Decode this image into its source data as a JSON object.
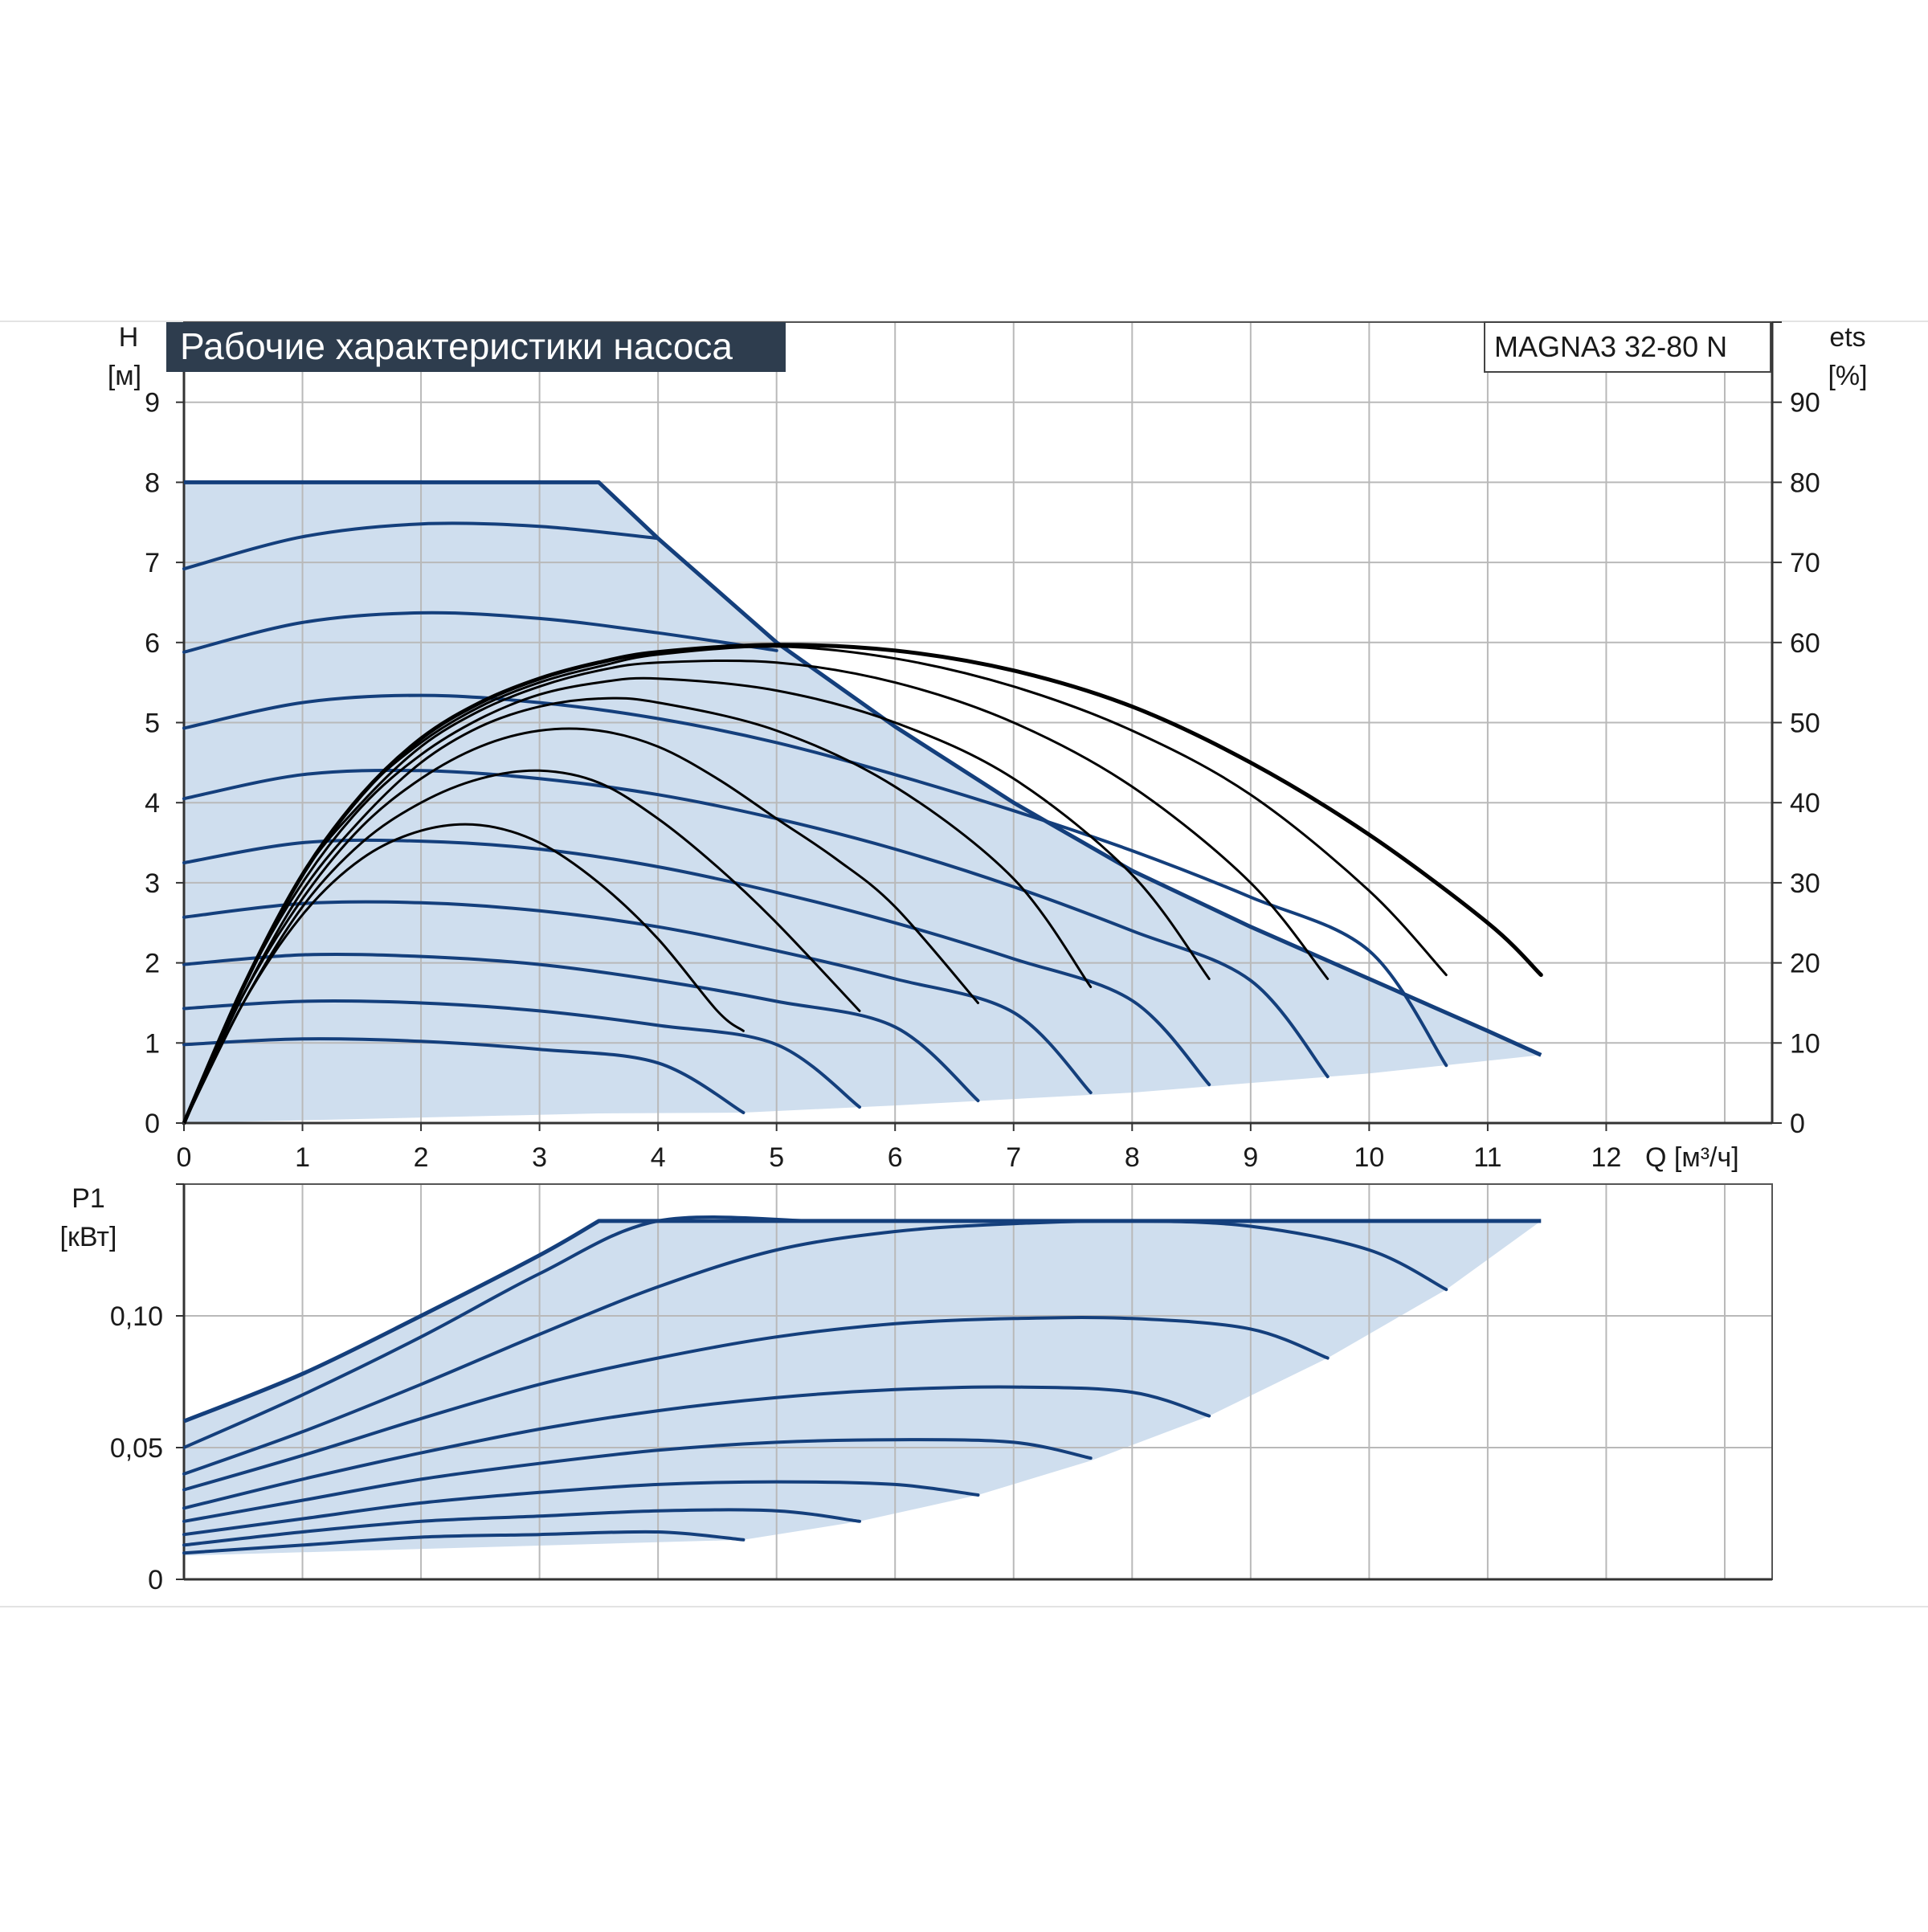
{
  "title": "Рабочие характеристики насоса",
  "model": "MAGNA3 32-80 N",
  "colors": {
    "curve": "#143f7c",
    "fill": "#cfdeee",
    "efficiency": "#000000",
    "grid": "#b9b9b9",
    "title_bg": "#2e3d4e"
  },
  "chart_data": [
    {
      "id": "head",
      "type": "line",
      "ylabel": [
        "H",
        "[м]"
      ],
      "y2label": [
        "ets",
        "[%]"
      ],
      "xlabel": "Q [м³/ч]",
      "xlim": [
        0,
        13.4
      ],
      "ylim": [
        0,
        10
      ],
      "y2lim": [
        0,
        100
      ],
      "x_ticks": [
        "0",
        "1",
        "2",
        "3",
        "4",
        "5",
        "6",
        "7",
        "8",
        "9",
        "10",
        "11",
        "12"
      ],
      "y_ticks": [
        "0",
        "1",
        "2",
        "3",
        "4",
        "5",
        "6",
        "7",
        "8",
        "9"
      ],
      "y2_ticks": [
        "0",
        "10",
        "20",
        "30",
        "40",
        "50",
        "60",
        "70",
        "80",
        "90"
      ],
      "grid": true,
      "operating_area": [
        [
          0,
          8
        ],
        [
          3.5,
          8
        ],
        [
          4.0,
          7.3
        ],
        [
          5.0,
          6.0
        ],
        [
          6.0,
          4.95
        ],
        [
          7.0,
          4.0
        ],
        [
          8.0,
          3.15
        ],
        [
          9.0,
          2.45
        ],
        [
          10.0,
          1.8
        ],
        [
          11.0,
          1.15
        ],
        [
          11.45,
          0.85
        ],
        [
          10.0,
          0.62
        ],
        [
          8.0,
          0.38
        ],
        [
          6.0,
          0.22
        ],
        [
          4.72,
          0.13
        ],
        [
          3.5,
          0.12
        ],
        [
          0,
          0
        ]
      ],
      "envelope_max": [
        [
          0,
          8
        ],
        [
          3.5,
          8
        ],
        [
          4.0,
          7.3
        ],
        [
          5.0,
          6.0
        ],
        [
          6.0,
          4.95
        ],
        [
          7.0,
          4.0
        ],
        [
          8.0,
          3.15
        ],
        [
          9.0,
          2.45
        ],
        [
          10.0,
          1.8
        ],
        [
          11.0,
          1.15
        ],
        [
          11.45,
          0.85
        ]
      ],
      "speed_curves": [
        [
          [
            0,
            6.92
          ],
          [
            1,
            7.32
          ],
          [
            2,
            7.48
          ],
          [
            3,
            7.45
          ],
          [
            4,
            7.3
          ]
        ],
        [
          [
            0,
            5.88
          ],
          [
            1,
            6.25
          ],
          [
            2,
            6.37
          ],
          [
            3,
            6.3
          ],
          [
            4,
            6.12
          ],
          [
            5,
            5.9
          ]
        ],
        [
          [
            0,
            4.93
          ],
          [
            1,
            5.25
          ],
          [
            2,
            5.34
          ],
          [
            3,
            5.25
          ],
          [
            4,
            5.05
          ],
          [
            5,
            4.75
          ],
          [
            6,
            4.35
          ],
          [
            7,
            3.9
          ],
          [
            8,
            3.4
          ],
          [
            9,
            2.82
          ],
          [
            10,
            2.15
          ],
          [
            10.65,
            0.72
          ]
        ],
        [
          [
            0,
            4.05
          ],
          [
            1,
            4.35
          ],
          [
            2,
            4.4
          ],
          [
            3,
            4.3
          ],
          [
            4,
            4.1
          ],
          [
            5,
            3.8
          ],
          [
            6,
            3.42
          ],
          [
            7,
            2.95
          ],
          [
            8,
            2.4
          ],
          [
            9,
            1.78
          ],
          [
            9.65,
            0.58
          ]
        ],
        [
          [
            0,
            3.25
          ],
          [
            1,
            3.5
          ],
          [
            2,
            3.52
          ],
          [
            3,
            3.42
          ],
          [
            4,
            3.2
          ],
          [
            5,
            2.88
          ],
          [
            6,
            2.5
          ],
          [
            7,
            2.05
          ],
          [
            8,
            1.53
          ],
          [
            8.65,
            0.48
          ]
        ],
        [
          [
            0,
            2.57
          ],
          [
            1,
            2.74
          ],
          [
            2,
            2.75
          ],
          [
            3,
            2.65
          ],
          [
            4,
            2.45
          ],
          [
            5,
            2.15
          ],
          [
            6,
            1.8
          ],
          [
            7,
            1.38
          ],
          [
            7.65,
            0.38
          ]
        ],
        [
          [
            0,
            1.98
          ],
          [
            1,
            2.1
          ],
          [
            2,
            2.08
          ],
          [
            3,
            1.98
          ],
          [
            4,
            1.78
          ],
          [
            5,
            1.52
          ],
          [
            6,
            1.2
          ],
          [
            6.7,
            0.28
          ]
        ],
        [
          [
            0,
            1.43
          ],
          [
            1,
            1.52
          ],
          [
            2,
            1.5
          ],
          [
            3,
            1.4
          ],
          [
            4,
            1.22
          ],
          [
            5,
            0.98
          ],
          [
            5.7,
            0.2
          ]
        ],
        [
          [
            0,
            0.98
          ],
          [
            1,
            1.05
          ],
          [
            2,
            1.02
          ],
          [
            3,
            0.92
          ],
          [
            4,
            0.75
          ],
          [
            4.72,
            0.13
          ]
        ]
      ],
      "efficiency_curves": [
        [
          [
            0,
            0
          ],
          [
            0.5,
            15
          ],
          [
            1,
            26
          ],
          [
            1.5,
            33
          ],
          [
            2,
            36.5
          ],
          [
            2.5,
            37.2
          ],
          [
            3,
            35
          ],
          [
            3.5,
            30
          ],
          [
            4,
            23
          ],
          [
            4.5,
            14
          ],
          [
            4.72,
            11.5
          ]
        ],
        [
          [
            0,
            0
          ],
          [
            0.5,
            15
          ],
          [
            1,
            27
          ],
          [
            1.5,
            35
          ],
          [
            2,
            40
          ],
          [
            2.5,
            43
          ],
          [
            3,
            44
          ],
          [
            3.5,
            42.5
          ],
          [
            4,
            38
          ],
          [
            4.5,
            32
          ],
          [
            5,
            25
          ],
          [
            5.7,
            14
          ]
        ],
        [
          [
            0,
            0
          ],
          [
            0.5,
            16
          ],
          [
            1,
            28
          ],
          [
            1.5,
            37
          ],
          [
            2,
            43
          ],
          [
            2.5,
            47
          ],
          [
            3,
            49
          ],
          [
            3.5,
            49
          ],
          [
            4,
            47
          ],
          [
            4.5,
            43
          ],
          [
            5,
            38
          ],
          [
            5.5,
            33
          ],
          [
            6,
            27
          ],
          [
            6.7,
            15
          ]
        ],
        [
          [
            0,
            0
          ],
          [
            0.5,
            16
          ],
          [
            1,
            29
          ],
          [
            1.5,
            38
          ],
          [
            2,
            45
          ],
          [
            2.5,
            49.5
          ],
          [
            3,
            52
          ],
          [
            3.5,
            53
          ],
          [
            4,
            52.5
          ],
          [
            5,
            49
          ],
          [
            6,
            42
          ],
          [
            7,
            30.5
          ],
          [
            7.65,
            17
          ]
        ],
        [
          [
            0,
            0
          ],
          [
            0.5,
            17
          ],
          [
            1,
            30
          ],
          [
            1.5,
            39.5
          ],
          [
            2,
            46
          ],
          [
            2.5,
            50.5
          ],
          [
            3,
            53.5
          ],
          [
            3.5,
            55
          ],
          [
            4,
            55.5
          ],
          [
            5,
            54
          ],
          [
            6,
            50
          ],
          [
            7,
            43
          ],
          [
            8,
            31
          ],
          [
            8.65,
            18
          ]
        ],
        [
          [
            0,
            0
          ],
          [
            0.5,
            17
          ],
          [
            1,
            31
          ],
          [
            1.5,
            40
          ],
          [
            2,
            47
          ],
          [
            2.5,
            51.5
          ],
          [
            3,
            54.5
          ],
          [
            3.5,
            56.5
          ],
          [
            4,
            57.5
          ],
          [
            5,
            57.5
          ],
          [
            6,
            55
          ],
          [
            7,
            50
          ],
          [
            8,
            42
          ],
          [
            9,
            30
          ],
          [
            9.65,
            18
          ]
        ],
        [
          [
            0,
            0
          ],
          [
            0.5,
            17
          ],
          [
            1,
            31
          ],
          [
            1.5,
            41
          ],
          [
            2,
            47.5
          ],
          [
            2.5,
            52
          ],
          [
            3,
            55
          ],
          [
            3.5,
            57
          ],
          [
            4,
            58.5
          ],
          [
            5,
            59.5
          ],
          [
            6,
            58
          ],
          [
            7,
            54.5
          ],
          [
            8,
            49
          ],
          [
            9,
            41
          ],
          [
            10,
            29
          ],
          [
            10.65,
            18.5
          ]
        ],
        [
          [
            0,
            0
          ],
          [
            0.5,
            17
          ],
          [
            1,
            31
          ],
          [
            1.5,
            41
          ],
          [
            2,
            48
          ],
          [
            2.5,
            52.5
          ],
          [
            3,
            55.5
          ],
          [
            3.5,
            57.5
          ],
          [
            4,
            58.8
          ],
          [
            5,
            59.7
          ],
          [
            6,
            59
          ],
          [
            7,
            56.5
          ],
          [
            8,
            52
          ],
          [
            9,
            45
          ],
          [
            10,
            36
          ],
          [
            11,
            25
          ],
          [
            11.45,
            18.5
          ]
        ]
      ]
    },
    {
      "id": "power",
      "type": "line",
      "ylabel": [
        "P1",
        "[кВт]"
      ],
      "xlim": [
        0,
        13.4
      ],
      "ylim": [
        0,
        0.15
      ],
      "y_ticks": [
        {
          "value": 0,
          "label": "0"
        },
        {
          "value": 0.05,
          "label": "0,05"
        },
        {
          "value": 0.1,
          "label": "0,10"
        }
      ],
      "grid": true,
      "operating_area": [
        [
          0,
          0.06
        ],
        [
          1,
          0.078
        ],
        [
          2,
          0.1
        ],
        [
          3,
          0.123
        ],
        [
          3.5,
          0.136
        ],
        [
          11.45,
          0.136
        ],
        [
          10.65,
          0.11
        ],
        [
          9.65,
          0.084
        ],
        [
          8.65,
          0.062
        ],
        [
          7.65,
          0.045
        ],
        [
          6.7,
          0.032
        ],
        [
          5.7,
          0.022
        ],
        [
          4.72,
          0.015
        ],
        [
          0,
          0.009
        ]
      ],
      "envelope_max": [
        [
          0,
          0.06
        ],
        [
          1,
          0.078
        ],
        [
          2,
          0.1
        ],
        [
          3,
          0.123
        ],
        [
          3.5,
          0.136
        ],
        [
          11.45,
          0.136
        ]
      ],
      "speed_curves": [
        [
          [
            0,
            0.05
          ],
          [
            1,
            0.07
          ],
          [
            2,
            0.092
          ],
          [
            3,
            0.116
          ],
          [
            4,
            0.136
          ],
          [
            5.3,
            0.136
          ]
        ],
        [
          [
            0,
            0.04
          ],
          [
            1,
            0.056
          ],
          [
            2,
            0.074
          ],
          [
            3,
            0.093
          ],
          [
            4,
            0.111
          ],
          [
            5,
            0.125
          ],
          [
            6,
            0.132
          ],
          [
            7,
            0.135
          ],
          [
            8,
            0.136
          ],
          [
            9,
            0.134
          ],
          [
            10,
            0.125
          ],
          [
            10.65,
            0.11
          ]
        ],
        [
          [
            0,
            0.034
          ],
          [
            1,
            0.047
          ],
          [
            2,
            0.061
          ],
          [
            3,
            0.074
          ],
          [
            4,
            0.084
          ],
          [
            5,
            0.092
          ],
          [
            6,
            0.097
          ],
          [
            7,
            0.099
          ],
          [
            8,
            0.099
          ],
          [
            9,
            0.095
          ],
          [
            9.65,
            0.084
          ]
        ],
        [
          [
            0,
            0.027
          ],
          [
            1,
            0.038
          ],
          [
            2,
            0.048
          ],
          [
            3,
            0.057
          ],
          [
            4,
            0.064
          ],
          [
            5,
            0.069
          ],
          [
            6,
            0.072
          ],
          [
            7,
            0.073
          ],
          [
            8,
            0.071
          ],
          [
            8.65,
            0.062
          ]
        ],
        [
          [
            0,
            0.022
          ],
          [
            1,
            0.03
          ],
          [
            2,
            0.038
          ],
          [
            3,
            0.044
          ],
          [
            4,
            0.049
          ],
          [
            5,
            0.052
          ],
          [
            6,
            0.053
          ],
          [
            7,
            0.052
          ],
          [
            7.65,
            0.046
          ]
        ],
        [
          [
            0,
            0.017
          ],
          [
            1,
            0.023
          ],
          [
            2,
            0.029
          ],
          [
            3,
            0.033
          ],
          [
            4,
            0.036
          ],
          [
            5,
            0.037
          ],
          [
            6,
            0.036
          ],
          [
            6.7,
            0.032
          ]
        ],
        [
          [
            0,
            0.013
          ],
          [
            1,
            0.018
          ],
          [
            2,
            0.022
          ],
          [
            3,
            0.024
          ],
          [
            4,
            0.026
          ],
          [
            5,
            0.026
          ],
          [
            5.7,
            0.022
          ]
        ],
        [
          [
            0,
            0.01
          ],
          [
            1,
            0.013
          ],
          [
            2,
            0.016
          ],
          [
            3,
            0.017
          ],
          [
            4,
            0.018
          ],
          [
            4.72,
            0.015
          ]
        ]
      ]
    }
  ]
}
